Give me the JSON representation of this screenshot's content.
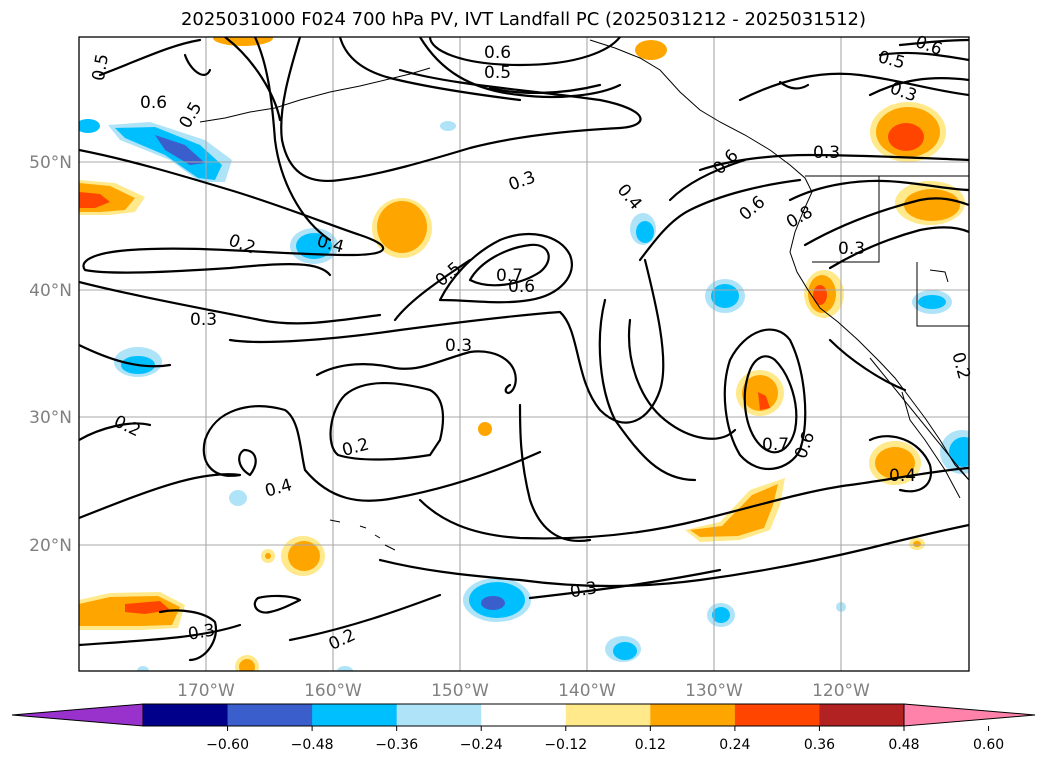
{
  "title": "2025031000 F024 700 hPa PV, IVT Landfall PC (2025031212 - 2025031512)",
  "lat_labels": [
    "50°N",
    "40°N",
    "30°N",
    "20°N"
  ],
  "lon_labels": [
    "170°W",
    "160°W",
    "150°W",
    "140°W",
    "130°W",
    "120°W"
  ],
  "colorbar": {
    "ticks": [
      "−0.60",
      "−0.48",
      "−0.36",
      "−0.24",
      "−0.12",
      "0.12",
      "0.24",
      "0.36",
      "0.48",
      "0.60"
    ],
    "colors": [
      "#9932cc",
      "#00008b",
      "#3a5fcd",
      "#00bfff",
      "#aee3f8",
      "#ffffff",
      "#ffe98a",
      "#ffa500",
      "#ff4500",
      "#b22222",
      "#ff82ab"
    ]
  },
  "contour_labels": [
    "0.6",
    "0.5",
    "0.5",
    "0.6",
    "0.3",
    "0.5",
    "0.6",
    "0.5",
    "0.3",
    "0.4",
    "0.6",
    "0.6",
    "0.8",
    "0.2",
    "0.4",
    "0.5",
    "0.7",
    "0.6",
    "0.3",
    "0.3",
    "0.3",
    "0.2",
    "0.2",
    "0.4",
    "0.3",
    "0.2",
    "0.3",
    "0.7",
    "0.6",
    "0.4",
    "0.2",
    "0.3"
  ]
}
